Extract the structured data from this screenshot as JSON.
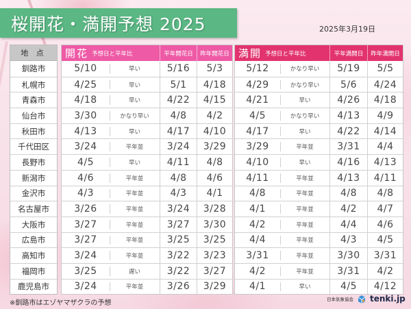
{
  "title": "桜開花・満開予想 2025",
  "date": "2025年3月19日",
  "location_header": "地 点",
  "kaika": {
    "title": "開花",
    "headers": [
      "予想日と平年比",
      "平年開花日",
      "昨年開花日"
    ],
    "color": "#ee5aa6"
  },
  "mankai": {
    "title": "満開",
    "headers": [
      "予想日と平年比",
      "平年満開日",
      "昨年満開日"
    ],
    "color": "#e2336f"
  },
  "rows": [
    {
      "city": "釧路市",
      "kaika": {
        "forecast": "5/10",
        "compare": "早い",
        "normal": "5/16",
        "last_year": "5/3"
      },
      "mankai": {
        "forecast": "5/12",
        "compare": "かなり早い",
        "normal": "5/19",
        "last_year": "5/5"
      }
    },
    {
      "city": "札幌市",
      "kaika": {
        "forecast": "4/25",
        "compare": "早い",
        "normal": "5/1",
        "last_year": "4/18"
      },
      "mankai": {
        "forecast": "4/29",
        "compare": "かなり早い",
        "normal": "5/6",
        "last_year": "4/24"
      }
    },
    {
      "city": "青森市",
      "kaika": {
        "forecast": "4/18",
        "compare": "早い",
        "normal": "4/22",
        "last_year": "4/15"
      },
      "mankai": {
        "forecast": "4/21",
        "compare": "早い",
        "normal": "4/26",
        "last_year": "4/18"
      }
    },
    {
      "city": "仙台市",
      "kaika": {
        "forecast": "3/30",
        "compare": "かなり早い",
        "normal": "4/8",
        "last_year": "4/2"
      },
      "mankai": {
        "forecast": "4/5",
        "compare": "かなり早い",
        "normal": "4/13",
        "last_year": "4/9"
      }
    },
    {
      "city": "秋田市",
      "kaika": {
        "forecast": "4/13",
        "compare": "早い",
        "normal": "4/17",
        "last_year": "4/10"
      },
      "mankai": {
        "forecast": "4/17",
        "compare": "早い",
        "normal": "4/22",
        "last_year": "4/14"
      }
    },
    {
      "city": "千代田区",
      "kaika": {
        "forecast": "3/24",
        "compare": "平年並",
        "normal": "3/24",
        "last_year": "3/29"
      },
      "mankai": {
        "forecast": "3/29",
        "compare": "平年並",
        "normal": "3/31",
        "last_year": "4/4"
      }
    },
    {
      "city": "長野市",
      "kaika": {
        "forecast": "4/5",
        "compare": "早い",
        "normal": "4/11",
        "last_year": "4/8"
      },
      "mankai": {
        "forecast": "4/10",
        "compare": "早い",
        "normal": "4/16",
        "last_year": "4/13"
      }
    },
    {
      "city": "新潟市",
      "kaika": {
        "forecast": "4/6",
        "compare": "平年並",
        "normal": "4/8",
        "last_year": "4/6"
      },
      "mankai": {
        "forecast": "4/11",
        "compare": "平年並",
        "normal": "4/13",
        "last_year": "4/11"
      }
    },
    {
      "city": "金沢市",
      "kaika": {
        "forecast": "4/3",
        "compare": "平年並",
        "normal": "4/3",
        "last_year": "4/1"
      },
      "mankai": {
        "forecast": "4/8",
        "compare": "平年並",
        "normal": "4/8",
        "last_year": "4/8"
      }
    },
    {
      "city": "名古屋市",
      "kaika": {
        "forecast": "3/26",
        "compare": "平年並",
        "normal": "3/24",
        "last_year": "3/28"
      },
      "mankai": {
        "forecast": "4/1",
        "compare": "平年並",
        "normal": "4/2",
        "last_year": "4/7"
      }
    },
    {
      "city": "大阪市",
      "kaika": {
        "forecast": "3/27",
        "compare": "平年並",
        "normal": "3/27",
        "last_year": "3/30"
      },
      "mankai": {
        "forecast": "4/2",
        "compare": "平年並",
        "normal": "4/4",
        "last_year": "4/6"
      }
    },
    {
      "city": "広島市",
      "kaika": {
        "forecast": "3/27",
        "compare": "平年並",
        "normal": "3/25",
        "last_year": "3/25"
      },
      "mankai": {
        "forecast": "4/4",
        "compare": "平年並",
        "normal": "4/3",
        "last_year": "4/5"
      }
    },
    {
      "city": "高知市",
      "kaika": {
        "forecast": "3/24",
        "compare": "平年並",
        "normal": "3/22",
        "last_year": "3/23"
      },
      "mankai": {
        "forecast": "3/31",
        "compare": "平年並",
        "normal": "3/30",
        "last_year": "3/31"
      }
    },
    {
      "city": "福岡市",
      "kaika": {
        "forecast": "3/25",
        "compare": "遅い",
        "normal": "3/22",
        "last_year": "3/27"
      },
      "mankai": {
        "forecast": "4/2",
        "compare": "平年並",
        "normal": "3/31",
        "last_year": "4/2"
      }
    },
    {
      "city": "鹿児島市",
      "kaika": {
        "forecast": "3/24",
        "compare": "平年並",
        "normal": "3/26",
        "last_year": "3/29"
      },
      "mankai": {
        "forecast": "4/1",
        "compare": "早い",
        "normal": "4/5",
        "last_year": "4/12"
      }
    }
  ],
  "footnote": "※釧路市はエゾヤマザクラの予想",
  "credit": {
    "org": "日本気象協会",
    "brand": "tenki.jp",
    "icon": "tenki-logo-icon"
  },
  "colors": {
    "title_banner": "#5bb784",
    "location_header": "#c7c7c7",
    "kaika_header": "#ee5aa6",
    "mankai_header": "#e2336f"
  }
}
